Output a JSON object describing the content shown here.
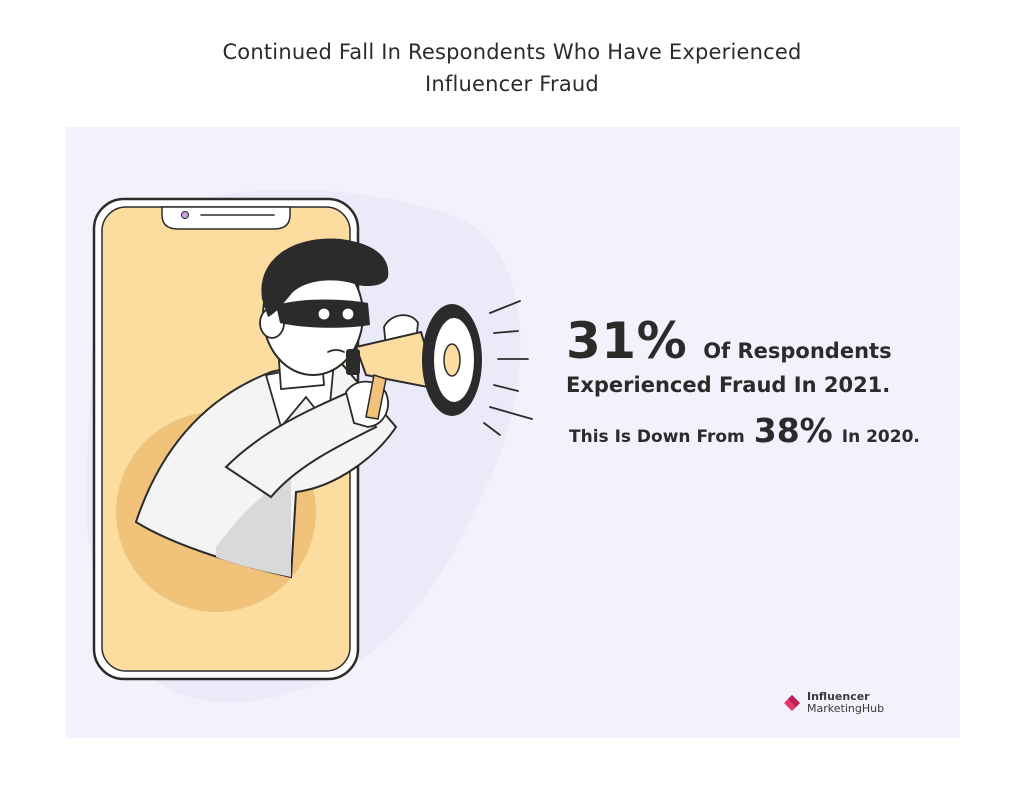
{
  "title": {
    "line1": "Continued Fall In Respondents Who Have Experienced",
    "line2": "Influencer Fraud"
  },
  "stat": {
    "value_2021": "31%",
    "line1_text": "Of Respondents",
    "line2_text": "Experienced Fraud In 2021.",
    "line3_prefix": "This Is Down From",
    "value_2020": "38%",
    "line3_suffix": "In 2020."
  },
  "logo": {
    "line1": "Influencer",
    "line2": "MarketingHub"
  },
  "colors": {
    "panel": "#f2f1fc",
    "phone_screen": "#fddc9f",
    "accent_shadow": "#f0c27a",
    "outline": "#2b2b2b",
    "logo_pink": "#e8336d"
  }
}
